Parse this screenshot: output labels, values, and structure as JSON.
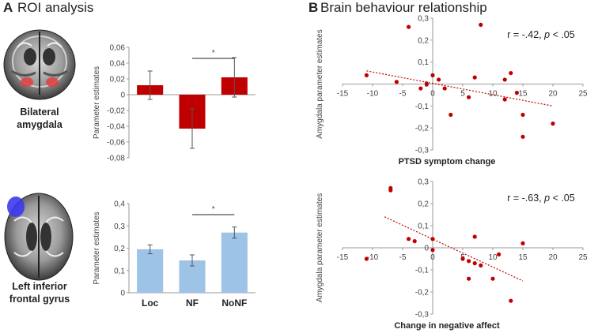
{
  "panel_a": {
    "letter": "A",
    "title": "ROI analysis"
  },
  "panel_b": {
    "letter": "B",
    "title": "Brain behaviour relationship"
  },
  "regions": {
    "top_line1": "Bilateral",
    "top_line2": "amygdala",
    "bottom_line1": "Left inferior",
    "bottom_line2": "frontal gyrus"
  },
  "colors": {
    "red": "#c00000",
    "blue_bar": "#9dc3e6",
    "dot": "#c00000",
    "trend": "#c00000"
  },
  "chart_data": [
    {
      "type": "bar",
      "id": "amygdala-bars",
      "categories": [
        "Loc",
        "NF",
        "NoNF"
      ],
      "values": [
        0.012,
        -0.043,
        0.022
      ],
      "errors": [
        0.018,
        0.025,
        0.025
      ],
      "ylabel": "Parameter estimates",
      "ylim": [
        -0.08,
        0.06
      ],
      "yticks": [
        "-0,08",
        "-0,06",
        "-0,04",
        "-0,02",
        "0",
        "0,02",
        "0,04",
        "0,06"
      ],
      "ytick_values": [
        -0.08,
        -0.06,
        -0.04,
        -0.02,
        0,
        0.02,
        0.04,
        0.06
      ],
      "significance": {
        "between": [
          "NF",
          "NoNF"
        ],
        "label": "*"
      }
    },
    {
      "type": "bar",
      "id": "ifg-bars",
      "categories": [
        "Loc",
        "NF",
        "NoNF"
      ],
      "values": [
        0.195,
        0.145,
        0.27
      ],
      "errors": [
        0.02,
        0.025,
        0.025
      ],
      "ylabel": "Parameter estimates",
      "ylim": [
        0,
        0.4
      ],
      "yticks": [
        "0",
        "0,1",
        "0,2",
        "0,3",
        "0,4"
      ],
      "ytick_values": [
        0,
        0.1,
        0.2,
        0.3,
        0.4
      ],
      "significance": {
        "between": [
          "NF",
          "NoNF"
        ],
        "label": "*"
      }
    },
    {
      "type": "scatter",
      "id": "ptsd-scatter",
      "xlabel": "PTSD symptom  change",
      "ylabel": "Amygdala parameter estimates",
      "xlim": [
        -15,
        25
      ],
      "ylim": [
        -0.3,
        0.3
      ],
      "xticks": [
        "-15",
        "-10",
        "-5",
        "0",
        "5",
        "10",
        "15",
        "20",
        "25"
      ],
      "xtick_values": [
        -15,
        -10,
        -5,
        0,
        5,
        10,
        15,
        20,
        25
      ],
      "yticks": [
        "0,3",
        "0,2",
        "0,1",
        "0",
        "-0,1",
        "-0,2",
        "-0,3"
      ],
      "ytick_values": [
        0.3,
        0.2,
        0.1,
        0,
        -0.1,
        -0.2,
        -0.3
      ],
      "points": [
        [
          -11,
          0.04
        ],
        [
          -6,
          0.01
        ],
        [
          -4,
          0.26
        ],
        [
          -1,
          0.0
        ],
        [
          0,
          0.04
        ],
        [
          1,
          0.02
        ],
        [
          -2,
          -0.02
        ],
        [
          2,
          -0.02
        ],
        [
          3,
          -0.14
        ],
        [
          6,
          -0.06
        ],
        [
          7,
          0.03
        ],
        [
          8,
          0.27
        ],
        [
          12,
          0.02
        ],
        [
          13,
          0.05
        ],
        [
          12,
          -0.07
        ],
        [
          14,
          -0.04
        ],
        [
          15,
          -0.14
        ],
        [
          15,
          -0.24
        ],
        [
          20,
          -0.18
        ]
      ],
      "trend": {
        "x": [
          -11,
          20
        ],
        "y": [
          0.06,
          -0.1
        ]
      },
      "annotation": {
        "prefix": "r = -.42, ",
        "p": "p",
        "suffix": " < .05"
      }
    },
    {
      "type": "scatter",
      "id": "affect-scatter",
      "xlabel": "Change in negative affect",
      "ylabel": "Amygdala parameter estimates",
      "xlim": [
        -15,
        25
      ],
      "ylim": [
        -0.3,
        0.3
      ],
      "xticks": [
        "-15",
        "-10",
        "-5",
        "0",
        "5",
        "10",
        "15",
        "20",
        "25"
      ],
      "xtick_values": [
        -15,
        -10,
        -5,
        0,
        5,
        10,
        15,
        20,
        25
      ],
      "yticks": [
        "0,3",
        "0,2",
        "0,1",
        "0",
        "-0,1",
        "-0,2",
        "-0,3"
      ],
      "ytick_values": [
        0.3,
        0.2,
        0.1,
        0,
        -0.1,
        -0.2,
        -0.3
      ],
      "points": [
        [
          -7,
          0.26
        ],
        [
          -7,
          0.27
        ],
        [
          -4,
          0.04
        ],
        [
          -3,
          0.03
        ],
        [
          0,
          0.04
        ],
        [
          0,
          -0.01
        ],
        [
          5,
          -0.05
        ],
        [
          6,
          -0.06
        ],
        [
          6,
          -0.14
        ],
        [
          7,
          -0.07
        ],
        [
          7,
          0.05
        ],
        [
          8,
          -0.08
        ],
        [
          10,
          -0.14
        ],
        [
          11,
          -0.03
        ],
        [
          13,
          -0.24
        ],
        [
          15,
          0.02
        ],
        [
          -11,
          -0.05
        ]
      ],
      "trend": {
        "x": [
          -8,
          15
        ],
        "y": [
          0.14,
          -0.15
        ]
      },
      "annotation": {
        "prefix": "r = -.63, ",
        "p": "p",
        "suffix": " < .05"
      }
    }
  ]
}
